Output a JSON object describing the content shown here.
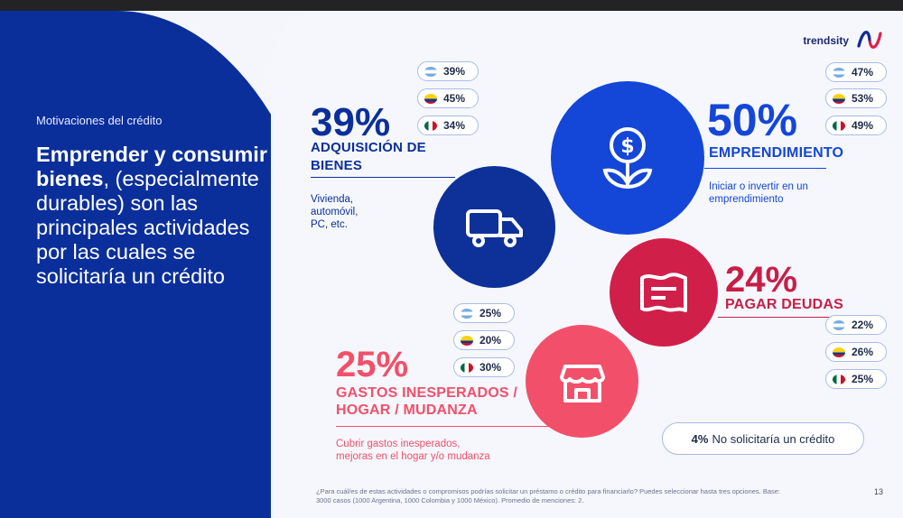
{
  "left": {
    "section_label": "Motivaciones del crédito",
    "headline_bold_1": "Emprender y consumir bienes",
    "headline_comma": ",",
    "headline_rest": "(especialmente durables) son las principales actividades por las cuales se solicitaría un crédito"
  },
  "logo": {
    "text": "trendsity"
  },
  "categories": {
    "adquisicion": {
      "pct": "39%",
      "label_1": "ADQUISICIÓN DE",
      "label_2": "BIENES",
      "desc_1": "Vivienda,",
      "desc_2": "automóvil,",
      "desc_3": "PC, etc.",
      "icon": "truck-icon",
      "countries": [
        {
          "flag": "argentina",
          "value": "39%"
        },
        {
          "flag": "colombia",
          "value": "45%"
        },
        {
          "flag": "mexico",
          "value": "34%"
        }
      ]
    },
    "emprendimiento": {
      "pct": "50%",
      "label": "EMPRENDIMIENTO",
      "desc_1": "Iniciar o invertir en un",
      "desc_2": "emprendimiento",
      "icon": "money-plant-icon",
      "countries": [
        {
          "flag": "argentina",
          "value": "47%"
        },
        {
          "flag": "colombia",
          "value": "53%"
        },
        {
          "flag": "mexico",
          "value": "49%"
        }
      ]
    },
    "deudas": {
      "pct": "24%",
      "label": "PAGAR DEUDAS",
      "icon": "receipt-icon",
      "countries": [
        {
          "flag": "argentina",
          "value": "22%"
        },
        {
          "flag": "colombia",
          "value": "26%"
        },
        {
          "flag": "mexico",
          "value": "25%"
        }
      ]
    },
    "gastos": {
      "pct": "25%",
      "label_1": "GASTOS INESPERADOS /",
      "label_2": "HOGAR / MUDANZA",
      "desc_1": "Cubrir gastos inesperados,",
      "desc_2": "mejoras en el hogar y/o mudanza",
      "icon": "house-icon",
      "countries": [
        {
          "flag": "argentina",
          "value": "25%"
        },
        {
          "flag": "colombia",
          "value": "20%"
        },
        {
          "flag": "mexico",
          "value": "30%"
        }
      ]
    }
  },
  "no_credit": {
    "pct": "4%",
    "text": "No solicitaría un crédito"
  },
  "footnote": "¿Para cuál/es de estas actividades o compromisos podrías solicitar un préstamo o crédito para financiarlo? Puedes seleccionar hasta tres opciones. Base: 3000 casos (1000 Argentina, 1000 Colombia y 1000 México). Promedio de menciones: 2.",
  "page_number": "13",
  "colors": {
    "navy": "#0b2f9a",
    "blue": "#1446d8",
    "dark_blue": "#0d3199",
    "crimson": "#d0204a",
    "pink": "#f2506a"
  }
}
